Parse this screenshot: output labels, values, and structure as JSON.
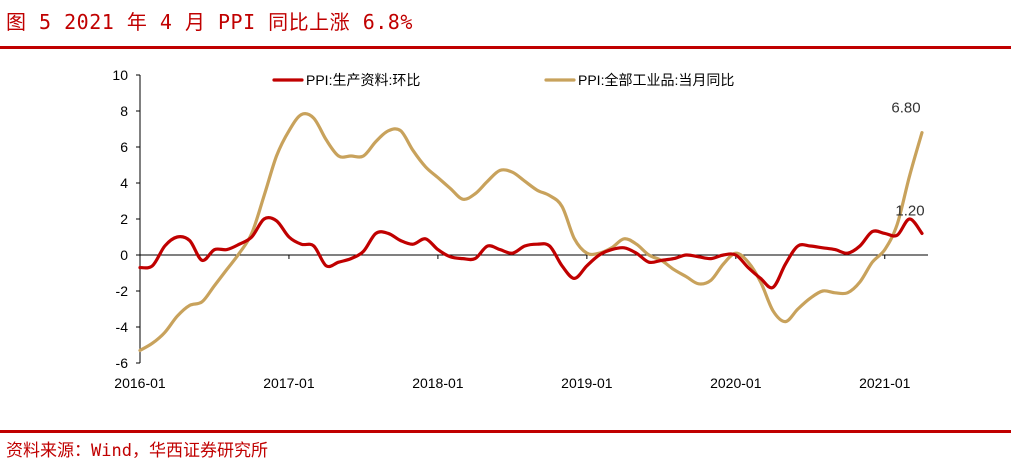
{
  "header": {
    "title": "图 5 2021 年 4 月 PPI 同比上涨 6.8%"
  },
  "footer": {
    "source": "资料来源：Wind，华西证券研究所"
  },
  "colors": {
    "accent": "#c00000",
    "series_mom": "#c00000",
    "series_yoy": "#c8a25c"
  },
  "chart_data": {
    "type": "line",
    "title": "图 5 2021 年 4 月 PPI 同比上涨 6.8%",
    "xlabel": "",
    "ylabel": "",
    "ylim": [
      -6,
      10
    ],
    "yticks": [
      10,
      8,
      6,
      4,
      2,
      0,
      -2,
      -4,
      -6
    ],
    "ytick_labels": [
      "10",
      "8",
      "6",
      "4",
      "2",
      "0",
      "-2",
      "-4",
      "-6"
    ],
    "xticks": [
      "2016-01",
      "2017-01",
      "2018-01",
      "2019-01",
      "2020-01",
      "2021-01"
    ],
    "x": [
      "2016-01",
      "2016-02",
      "2016-03",
      "2016-04",
      "2016-05",
      "2016-06",
      "2016-07",
      "2016-08",
      "2016-09",
      "2016-10",
      "2016-11",
      "2016-12",
      "2017-01",
      "2017-02",
      "2017-03",
      "2017-04",
      "2017-05",
      "2017-06",
      "2017-07",
      "2017-08",
      "2017-09",
      "2017-10",
      "2017-11",
      "2017-12",
      "2018-01",
      "2018-02",
      "2018-03",
      "2018-04",
      "2018-05",
      "2018-06",
      "2018-07",
      "2018-08",
      "2018-09",
      "2018-10",
      "2018-11",
      "2018-12",
      "2019-01",
      "2019-02",
      "2019-03",
      "2019-04",
      "2019-05",
      "2019-06",
      "2019-07",
      "2019-08",
      "2019-09",
      "2019-10",
      "2019-11",
      "2019-12",
      "2020-01",
      "2020-02",
      "2020-03",
      "2020-04",
      "2020-05",
      "2020-06",
      "2020-07",
      "2020-08",
      "2020-09",
      "2020-10",
      "2020-11",
      "2020-12",
      "2021-01",
      "2021-02",
      "2021-03",
      "2021-04"
    ],
    "legend_position": "top",
    "grid": false,
    "series": [
      {
        "name": "PPI:生产资料:环比",
        "color": "#c00000",
        "values": [
          -0.7,
          -0.6,
          0.5,
          1.0,
          0.8,
          -0.3,
          0.3,
          0.3,
          0.6,
          1.0,
          2.0,
          1.9,
          1.0,
          0.6,
          0.5,
          -0.6,
          -0.4,
          -0.2,
          0.2,
          1.2,
          1.2,
          0.8,
          0.6,
          0.9,
          0.3,
          -0.1,
          -0.2,
          -0.2,
          0.5,
          0.3,
          0.1,
          0.5,
          0.6,
          0.5,
          -0.6,
          -1.3,
          -0.6,
          0.0,
          0.3,
          0.4,
          0.1,
          -0.4,
          -0.3,
          -0.2,
          0.0,
          -0.1,
          -0.2,
          0.0,
          0.0,
          -0.7,
          -1.3,
          -1.8,
          -0.5,
          0.5,
          0.5,
          0.4,
          0.3,
          0.1,
          0.5,
          1.3,
          1.2,
          1.1,
          2.0,
          1.2
        ],
        "end_label": "1.20"
      },
      {
        "name": "PPI:全部工业品:当月同比",
        "color": "#c8a25c",
        "values": [
          -5.3,
          -4.9,
          -4.3,
          -3.4,
          -2.8,
          -2.6,
          -1.7,
          -0.8,
          0.1,
          1.2,
          3.3,
          5.5,
          6.9,
          7.8,
          7.6,
          6.4,
          5.5,
          5.5,
          5.5,
          6.3,
          6.9,
          6.9,
          5.8,
          4.9,
          4.3,
          3.7,
          3.1,
          3.4,
          4.1,
          4.7,
          4.6,
          4.1,
          3.6,
          3.3,
          2.7,
          0.9,
          0.1,
          0.1,
          0.4,
          0.9,
          0.6,
          0.0,
          -0.3,
          -0.8,
          -1.2,
          -1.6,
          -1.4,
          -0.5,
          0.1,
          -0.4,
          -1.5,
          -3.1,
          -3.7,
          -3.0,
          -2.4,
          -2.0,
          -2.1,
          -2.1,
          -1.5,
          -0.4,
          0.3,
          1.7,
          4.4,
          6.8
        ],
        "end_label": "6.80"
      }
    ]
  }
}
